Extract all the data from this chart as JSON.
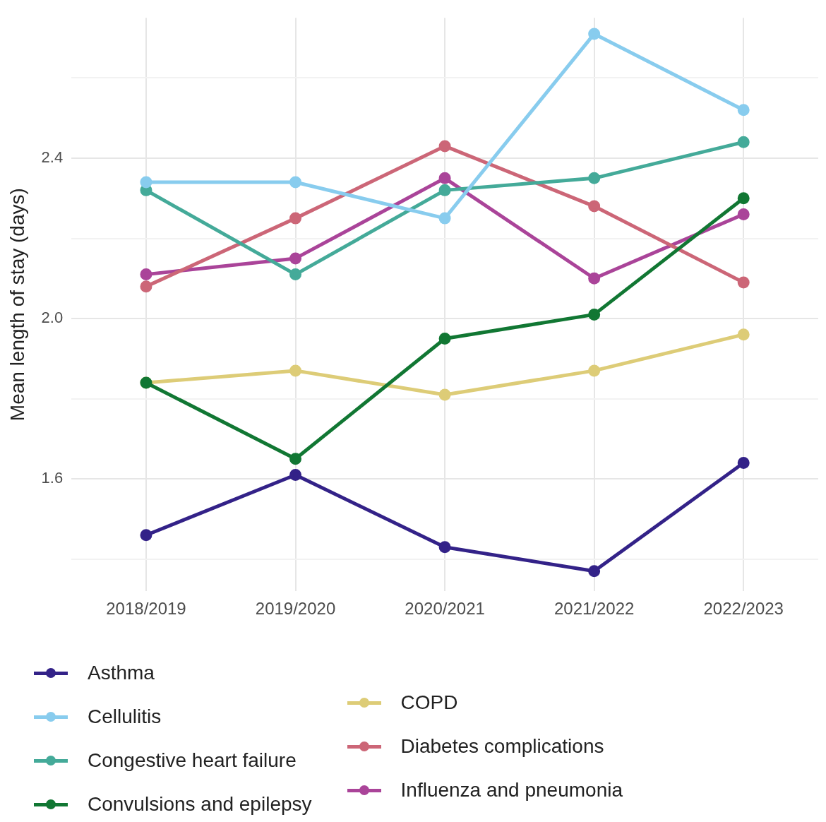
{
  "chart_data": {
    "type": "line",
    "ylabel": "Mean length of stay (days)",
    "categories": [
      "2018/2019",
      "2019/2020",
      "2020/2021",
      "2021/2022",
      "2022/2023"
    ],
    "ylim": [
      1.32,
      2.75
    ],
    "yticks": [
      {
        "value": 1.4,
        "label": null
      },
      {
        "value": 1.6,
        "label": "1.6"
      },
      {
        "value": 1.8,
        "label": null
      },
      {
        "value": 2.0,
        "label": "2.0"
      },
      {
        "value": 2.2,
        "label": null
      },
      {
        "value": 2.4,
        "label": "2.4"
      },
      {
        "value": 2.6,
        "label": null
      }
    ],
    "grid": true,
    "legend": "bottom",
    "marker": "circle",
    "line_style": "solid",
    "series": [
      {
        "name": "Asthma",
        "color": "#332288",
        "values": [
          1.46,
          1.61,
          1.43,
          1.37,
          1.64
        ]
      },
      {
        "name": "Cellulitis",
        "color": "#88ccee",
        "values": [
          2.34,
          2.34,
          2.25,
          2.71,
          2.52
        ]
      },
      {
        "name": "Congestive heart failure",
        "color": "#44aa99",
        "values": [
          2.32,
          2.11,
          2.32,
          2.35,
          2.44
        ]
      },
      {
        "name": "Convulsions and epilepsy",
        "color": "#117733",
        "values": [
          1.84,
          1.65,
          1.95,
          2.01,
          2.3
        ]
      },
      {
        "name": "COPD",
        "color": "#ddcc77",
        "values": [
          1.84,
          1.87,
          1.81,
          1.87,
          1.96
        ]
      },
      {
        "name": "Diabetes complications",
        "color": "#cc6677",
        "values": [
          2.08,
          2.25,
          2.43,
          2.28,
          2.09
        ]
      },
      {
        "name": "Influenza and pneumonia",
        "color": "#aa4499",
        "values": [
          2.11,
          2.15,
          2.35,
          2.1,
          2.26
        ]
      }
    ]
  }
}
